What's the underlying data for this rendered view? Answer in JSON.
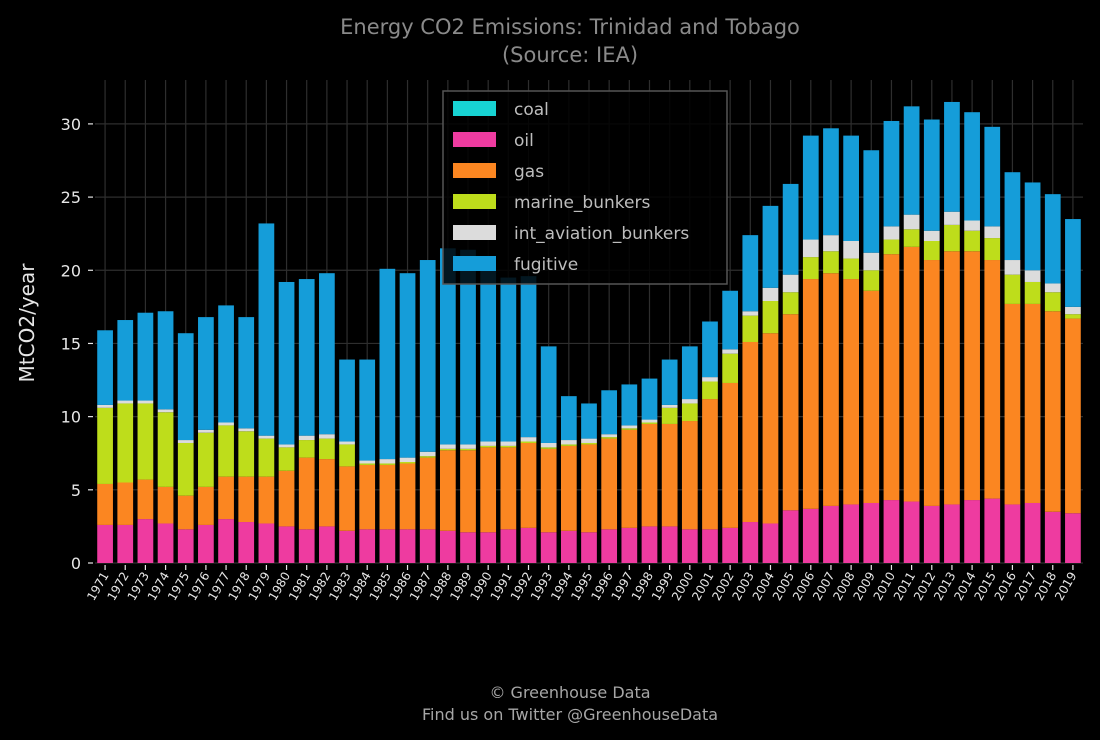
{
  "chart_data": {
    "type": "bar",
    "stacked": true,
    "title": "Energy CO2 Emissions: Trinidad and Tobago",
    "subtitle": "(Source: IEA)",
    "xlabel": "",
    "ylabel": "MtCO2/year",
    "ylim": [
      0,
      33
    ],
    "yticks": [
      0,
      5,
      10,
      15,
      20,
      25,
      30
    ],
    "grid": true,
    "legend_position": "top-center",
    "categories": [
      "1971",
      "1972",
      "1973",
      "1974",
      "1975",
      "1976",
      "1977",
      "1978",
      "1979",
      "1980",
      "1981",
      "1982",
      "1983",
      "1984",
      "1985",
      "1986",
      "1987",
      "1988",
      "1989",
      "1990",
      "1991",
      "1992",
      "1993",
      "1994",
      "1995",
      "1996",
      "1997",
      "1998",
      "1999",
      "2000",
      "2001",
      "2002",
      "2003",
      "2004",
      "2005",
      "2006",
      "2007",
      "2008",
      "2009",
      "2010",
      "2011",
      "2012",
      "2013",
      "2014",
      "2015",
      "2016",
      "2017",
      "2018",
      "2019"
    ],
    "series": [
      {
        "name": "coal",
        "color": "#17d3d3",
        "values": [
          0,
          0,
          0,
          0,
          0,
          0,
          0,
          0,
          0,
          0,
          0,
          0,
          0,
          0,
          0,
          0,
          0,
          0,
          0,
          0,
          0,
          0,
          0,
          0,
          0,
          0,
          0,
          0,
          0,
          0,
          0,
          0,
          0,
          0,
          0,
          0,
          0,
          0,
          0,
          0,
          0,
          0,
          0,
          0,
          0,
          0,
          0,
          0,
          0
        ]
      },
      {
        "name": "oil",
        "color": "#ee3ba0",
        "values": [
          2.6,
          2.6,
          3.0,
          2.7,
          2.3,
          2.6,
          3.0,
          2.8,
          2.7,
          2.5,
          2.3,
          2.5,
          2.2,
          2.3,
          2.3,
          2.3,
          2.3,
          2.2,
          2.1,
          2.1,
          2.3,
          2.4,
          2.1,
          2.2,
          2.1,
          2.3,
          2.4,
          2.5,
          2.5,
          2.3,
          2.3,
          2.4,
          2.8,
          2.7,
          3.6,
          3.7,
          3.9,
          4.0,
          4.1,
          4.3,
          4.2,
          3.9,
          4.0,
          4.3,
          4.4,
          4.0,
          4.1,
          3.5,
          3.4
        ]
      },
      {
        "name": "gas",
        "color": "#fb8621",
        "values": [
          2.8,
          2.9,
          2.7,
          2.5,
          2.3,
          2.6,
          2.9,
          3.1,
          3.2,
          3.8,
          4.9,
          4.6,
          4.4,
          4.4,
          4.4,
          4.5,
          4.9,
          5.5,
          5.6,
          5.8,
          5.6,
          5.8,
          5.7,
          5.8,
          6.0,
          6.2,
          6.7,
          7.0,
          7.0,
          7.4,
          8.9,
          9.9,
          12.3,
          13.0,
          13.4,
          15.7,
          15.9,
          15.4,
          14.5,
          16.8,
          17.4,
          16.8,
          17.3,
          17.0,
          16.3,
          13.7,
          13.6,
          13.7,
          13.3
        ]
      },
      {
        "name": "marine_bunkers",
        "color": "#bedd1b",
        "values": [
          5.2,
          5.4,
          5.2,
          5.1,
          3.6,
          3.7,
          3.5,
          3.1,
          2.6,
          1.6,
          1.2,
          1.4,
          1.5,
          0.1,
          0.1,
          0.1,
          0.1,
          0.1,
          0.1,
          0.1,
          0.1,
          0.1,
          0.1,
          0.1,
          0.1,
          0.1,
          0.1,
          0.1,
          1.1,
          1.2,
          1.2,
          2.0,
          1.8,
          2.2,
          1.5,
          1.5,
          1.5,
          1.4,
          1.4,
          1.0,
          1.2,
          1.3,
          1.8,
          1.4,
          1.5,
          2.0,
          1.5,
          1.3,
          0.3
        ]
      },
      {
        "name": "int_aviation_bunkers",
        "color": "#dcdcdc",
        "values": [
          0.2,
          0.2,
          0.2,
          0.2,
          0.2,
          0.2,
          0.2,
          0.2,
          0.2,
          0.2,
          0.3,
          0.3,
          0.2,
          0.2,
          0.3,
          0.3,
          0.3,
          0.3,
          0.3,
          0.3,
          0.3,
          0.3,
          0.3,
          0.3,
          0.3,
          0.2,
          0.2,
          0.2,
          0.2,
          0.3,
          0.3,
          0.3,
          0.3,
          0.9,
          1.2,
          1.2,
          1.1,
          1.2,
          1.2,
          0.9,
          1.0,
          0.7,
          0.9,
          0.7,
          0.8,
          1.0,
          0.8,
          0.6,
          0.5
        ]
      },
      {
        "name": "fugitive",
        "color": "#159dd9",
        "values": [
          5.1,
          5.5,
          6.0,
          6.7,
          7.3,
          7.7,
          8.0,
          7.6,
          14.5,
          11.1,
          10.7,
          11.0,
          5.6,
          6.9,
          13.0,
          12.6,
          13.1,
          13.4,
          13.3,
          11.8,
          11.2,
          11.0,
          6.6,
          3.0,
          2.4,
          3.0,
          2.8,
          2.8,
          3.1,
          3.6,
          3.8,
          4.0,
          5.2,
          5.6,
          6.2,
          7.1,
          7.3,
          7.2,
          7.0,
          7.2,
          7.4,
          7.6,
          7.5,
          7.4,
          6.8,
          6.0,
          6.0,
          6.1,
          6.0
        ]
      }
    ]
  },
  "footer": {
    "line1": "© Greenhouse Data",
    "line2": "Find us on Twitter @GreenhouseData"
  }
}
